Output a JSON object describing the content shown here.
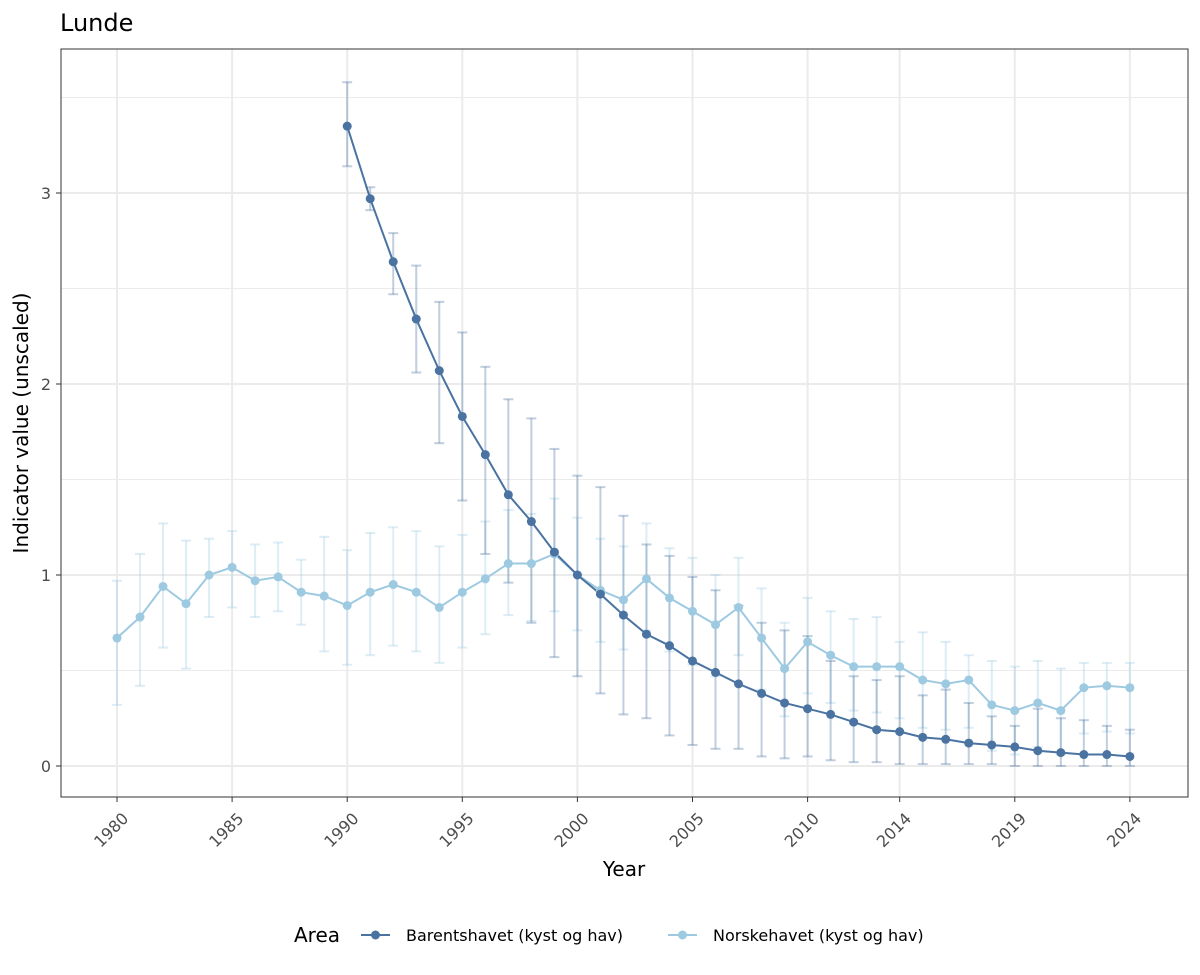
{
  "chart_data": {
    "type": "line",
    "title": "Lunde",
    "xlabel": "Year",
    "ylabel": "Indicator value (unscaled)",
    "xlim": [
      1979.2,
      1981.5
    ],
    "ylim": [
      -0.17,
      3.75
    ],
    "x_ticks": [
      1980,
      1985,
      1990,
      1995,
      2000,
      2005,
      2010,
      2014,
      2019,
      2024
    ],
    "x_tick_labels": [
      "1980",
      "1985",
      "1990",
      "1995",
      "2000",
      "2005",
      "2010",
      "2014",
      "2019",
      "2024"
    ],
    "y_ticks": [
      0,
      1,
      2,
      3
    ],
    "y_tick_labels": [
      "0",
      "1",
      "2",
      "3"
    ],
    "grid": true,
    "legend": {
      "title": "Area",
      "position": "bottom",
      "entries": [
        "Barentshavet (kyst og hav)",
        "Norskehavet (kyst og hav)"
      ]
    },
    "series": [
      {
        "name": "Barentshavet (kyst og hav)",
        "color": "#4a73a1",
        "x": [
          1990,
          1991,
          1992,
          1993,
          1994,
          1995,
          1996,
          1997,
          1998,
          1999,
          2000,
          2001,
          2002,
          2003,
          2004,
          2005,
          2006,
          2007,
          2008,
          2009,
          2010,
          2011,
          2012,
          2013,
          2014,
          2015,
          2016,
          2017,
          2018,
          2019,
          2020,
          2021,
          2022,
          2023,
          2024
        ],
        "values": [
          3.35,
          2.97,
          2.64,
          2.34,
          2.07,
          1.83,
          1.63,
          1.42,
          1.28,
          1.12,
          1.0,
          0.9,
          0.79,
          0.69,
          0.63,
          0.55,
          0.49,
          0.43,
          0.38,
          0.33,
          0.3,
          0.27,
          0.23,
          0.19,
          0.18,
          0.15,
          0.14,
          0.12,
          0.11,
          0.1,
          0.08,
          0.07,
          0.06,
          0.06,
          0.05
        ],
        "lower": [
          3.14,
          2.91,
          2.47,
          2.06,
          1.69,
          1.39,
          1.11,
          0.96,
          0.75,
          0.57,
          0.47,
          0.38,
          0.27,
          0.25,
          0.16,
          0.11,
          0.09,
          0.09,
          0.05,
          0.04,
          0.05,
          0.03,
          0.02,
          0.02,
          0.01,
          0.01,
          0.01,
          0.01,
          0.01,
          0.0,
          0.0,
          0.0,
          0.0,
          0.0,
          0.0
        ],
        "upper": [
          3.58,
          3.03,
          2.79,
          2.62,
          2.43,
          2.27,
          2.09,
          1.92,
          1.82,
          1.66,
          1.52,
          1.46,
          1.31,
          1.16,
          1.1,
          0.99,
          0.92,
          0.84,
          0.75,
          0.71,
          0.68,
          0.55,
          0.47,
          0.45,
          0.47,
          0.37,
          0.4,
          0.33,
          0.26,
          0.21,
          0.3,
          0.25,
          0.24,
          0.21,
          0.19
        ]
      },
      {
        "name": "Norskehavet (kyst og hav)",
        "color": "#9ecae1",
        "x": [
          1980,
          1981,
          1982,
          1983,
          1984,
          1985,
          1986,
          1987,
          1988,
          1989,
          1990,
          1991,
          1992,
          1993,
          1994,
          1995,
          1996,
          1997,
          1998,
          1999,
          2000,
          2001,
          2002,
          2003,
          2004,
          2005,
          2006,
          2007,
          2008,
          2009,
          2010,
          2011,
          2012,
          2013,
          2014,
          2015,
          2016,
          2017,
          2018,
          2019,
          2020,
          2021,
          2022,
          2023,
          2024
        ],
        "values": [
          0.67,
          0.78,
          0.94,
          0.85,
          1.0,
          1.04,
          0.97,
          0.99,
          0.91,
          0.89,
          0.84,
          0.91,
          0.95,
          0.91,
          0.83,
          0.91,
          0.98,
          1.06,
          1.06,
          1.11,
          1.0,
          0.92,
          0.87,
          0.98,
          0.88,
          0.81,
          0.74,
          0.83,
          0.67,
          0.51,
          0.65,
          0.58,
          0.52,
          0.52,
          0.52,
          0.45,
          0.43,
          0.45,
          0.32,
          0.29,
          0.33,
          0.29,
          0.41,
          0.42,
          0.41
        ],
        "lower": [
          0.32,
          0.42,
          0.62,
          0.51,
          0.78,
          0.83,
          0.78,
          0.81,
          0.74,
          0.6,
          0.53,
          0.58,
          0.63,
          0.6,
          0.54,
          0.62,
          0.69,
          0.79,
          0.76,
          0.81,
          0.71,
          0.65,
          0.61,
          0.71,
          0.6,
          0.53,
          0.47,
          0.58,
          0.4,
          0.26,
          0.38,
          0.33,
          0.29,
          0.28,
          0.25,
          0.2,
          0.19,
          0.2,
          0.08,
          0.06,
          0.1,
          0.06,
          0.17,
          0.18,
          0.17
        ],
        "upper": [
          0.97,
          1.11,
          1.27,
          1.18,
          1.19,
          1.23,
          1.16,
          1.17,
          1.08,
          1.2,
          1.13,
          1.22,
          1.25,
          1.23,
          1.15,
          1.21,
          1.28,
          1.34,
          1.32,
          1.4,
          1.3,
          1.19,
          1.15,
          1.27,
          1.14,
          1.09,
          1.0,
          1.09,
          0.93,
          0.75,
          0.88,
          0.81,
          0.77,
          0.78,
          0.65,
          0.7,
          0.65,
          0.58,
          0.55,
          0.52,
          0.55,
          0.51,
          0.54,
          0.54,
          0.54
        ]
      }
    ]
  }
}
